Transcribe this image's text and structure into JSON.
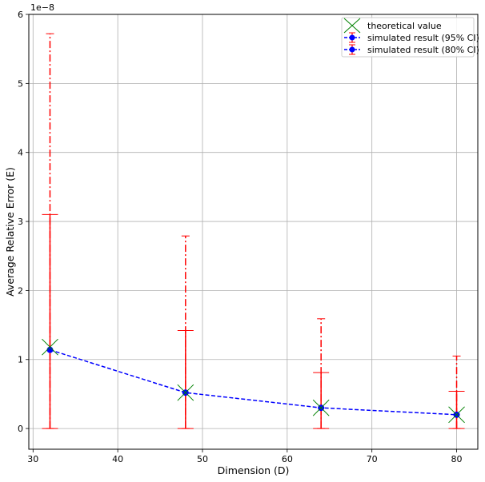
{
  "chart_data": {
    "type": "line",
    "title": "",
    "xlabel": "Dimension (D)",
    "ylabel": "Average Relative Error (E)",
    "y_scale_label": "1e−8",
    "xlim": [
      29.5,
      82.5
    ],
    "ylim": [
      -0.3,
      6.0
    ],
    "x_ticks": [
      30,
      40,
      50,
      60,
      70,
      80
    ],
    "x_tick_labels": [
      "30",
      "40",
      "50",
      "60",
      "70",
      "80"
    ],
    "y_ticks": [
      0,
      1,
      2,
      3,
      4,
      5,
      6
    ],
    "y_tick_labels": [
      "0",
      "1",
      "2",
      "3",
      "4",
      "5",
      "6"
    ],
    "grid": true,
    "legend_position": "top-right",
    "x": [
      32,
      48,
      64,
      80
    ],
    "series": [
      {
        "name": "theoretical value",
        "kind": "marker",
        "marker": "x",
        "color": "#008000",
        "values": [
          1.18,
          0.52,
          0.3,
          0.2
        ]
      },
      {
        "name": "simulated result (95% CI)",
        "kind": "errorbar",
        "color": "#0000ff",
        "errcolor": "#ff0000",
        "errstyle": "dashdot",
        "values": [
          1.14,
          0.52,
          0.3,
          0.2
        ],
        "lower": [
          0.0,
          0.0,
          0.0,
          0.0
        ],
        "upper": [
          5.72,
          2.79,
          1.59,
          1.05
        ]
      },
      {
        "name": "simulated result (80% CI)",
        "kind": "errorbar",
        "color": "#0000ff",
        "errcolor": "#ff0000",
        "errstyle": "solid",
        "values": [
          1.14,
          0.52,
          0.3,
          0.2
        ],
        "lower": [
          0.0,
          0.0,
          0.0,
          0.0
        ],
        "upper": [
          3.1,
          1.42,
          0.81,
          0.54
        ]
      }
    ]
  }
}
